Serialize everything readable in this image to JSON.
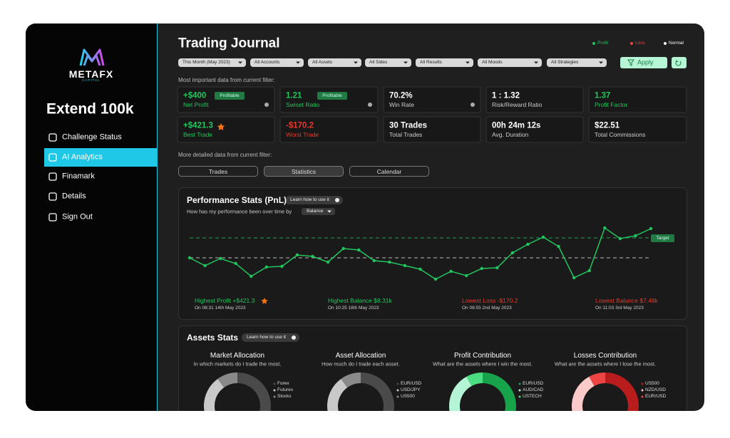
{
  "sidebar": {
    "brand": "METAFX",
    "brand_sub": "CAPITAL",
    "account": "Extend 100k",
    "nav": [
      "Challenge Status",
      "AI Analytics",
      "Finamark",
      "Details",
      "Sign Out"
    ],
    "active": 1
  },
  "header": {
    "title": "Trading Journal",
    "legend": [
      {
        "label": "Profit",
        "color": "#22c55e"
      },
      {
        "label": "Loss",
        "color": "#ef4444"
      },
      {
        "label": "Normal",
        "color": "#ffffff"
      }
    ]
  },
  "filters": {
    "options": [
      "This Month (May 2023)",
      "All Accounts",
      "All Assets",
      "All Sides",
      "All Results",
      "All Moods",
      "All Strategies"
    ],
    "apply": "Apply"
  },
  "summary": {
    "caption": "Most important data from current filter:",
    "cards": [
      {
        "value": "+$400",
        "badge": "Profitable",
        "label": "Net Profit",
        "color": "#22c55e"
      },
      {
        "value": "1.21",
        "badge": "Profitable",
        "label": "Swiset Ratio",
        "color": "#22c55e"
      },
      {
        "value": "70.2%",
        "label": "Win Rate",
        "color": "#ffffff"
      },
      {
        "value": "1 : 1.32",
        "label": "Risk/Reward Ratio",
        "color": "#ffffff"
      },
      {
        "value": "1.37",
        "label": "Profit Factor",
        "color": "#22c55e"
      },
      {
        "value": "+$421.3",
        "label": "Best Trade",
        "color": "#22c55e"
      },
      {
        "value": "-$170.2",
        "label": "Worst Trade",
        "color": "#e5392b"
      },
      {
        "value": "30 Trades",
        "label": "Total Trades",
        "color": "#ffffff"
      },
      {
        "value": "00h 24m 12s",
        "label": "Avg. Duration",
        "color": "#ffffff"
      },
      {
        "value": "$22.51",
        "label": "Total Commissions",
        "color": "#ffffff"
      }
    ]
  },
  "details": {
    "caption": "More detailed data from current filter:",
    "tabs": [
      "Trades",
      "Statistics",
      "Calendar"
    ],
    "active": 1
  },
  "performance": {
    "title": "Performance Stats (PnL)",
    "help": "Learn how to use it",
    "subtitle": "How has my performance been over time by",
    "dropdown": "Balance",
    "target_label": "Target",
    "chart": {
      "type": "line",
      "values": [
        38,
        27,
        37,
        30,
        12,
        25,
        26,
        42,
        40,
        32,
        51,
        49,
        34,
        32,
        27,
        22,
        8,
        19,
        13,
        23,
        24,
        45,
        57,
        67,
        54,
        10,
        20,
        80,
        65,
        69,
        79
      ],
      "target": 66,
      "baseline": 38,
      "ylim": [
        0,
        100
      ],
      "color": "#22c55e"
    },
    "highlights": [
      {
        "label": "Highest Profit +$421.3",
        "date": "On 08:31 14th May 2023",
        "color": "#22c55e"
      },
      {
        "label": "Highest Balance $8.31k",
        "date": "On 10:25 18th May 2023",
        "color": "#22c55e"
      },
      {
        "label": "Lowest Loss -$170.2",
        "date": "On 08:55 2nd May 2023",
        "color": "#e5392b"
      },
      {
        "label": "Lowest Balance $7.48k",
        "date": "On 11:03 3rd May 2023",
        "color": "#e5392b"
      }
    ]
  },
  "assets": {
    "title": "Assets Stats",
    "help": "Learn how to use it",
    "donuts": [
      {
        "type": "pie",
        "title": "Market Allocation",
        "subtitle": "In which markets do I trade the most.",
        "labels": [
          "Forex",
          "Futures",
          "Stocks"
        ],
        "values": [
          65,
          25,
          10
        ],
        "colors": [
          "#4a4a4a",
          "#c9c9c9",
          "#8a8a8a"
        ]
      },
      {
        "type": "pie",
        "title": "Asset Allocation",
        "subtitle": "How much do I trade each asset.",
        "labels": [
          "EUR/USD",
          "USD/JPY",
          "US500"
        ],
        "values": [
          62,
          28,
          10
        ],
        "colors": [
          "#4a4a4a",
          "#c9c9c9",
          "#8a8a8a"
        ]
      },
      {
        "type": "pie",
        "title": "Profit Contribution",
        "subtitle": "What are the assets where I win the most.",
        "labels": [
          "EUR/USD",
          "AUD/CAD",
          "USTECH"
        ],
        "values": [
          62,
          30,
          8
        ],
        "colors": [
          "#16a34a",
          "#b4f5d6",
          "#4ade80"
        ]
      },
      {
        "type": "pie",
        "title": "Losses Contribution",
        "subtitle": "What are the assets where I lose the most.",
        "labels": [
          "US500",
          "NZD/USD",
          "EUR/USD"
        ],
        "values": [
          60,
          32,
          8
        ],
        "colors": [
          "#b91c1c",
          "#fdcaca",
          "#ef4444"
        ]
      }
    ]
  }
}
